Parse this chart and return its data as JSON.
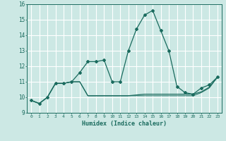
{
  "title": "",
  "xlabel": "Humidex (Indice chaleur)",
  "bg_color": "#cce8e4",
  "grid_color": "#ffffff",
  "line_color": "#1a6b5e",
  "x_values": [
    0,
    1,
    2,
    3,
    4,
    5,
    6,
    7,
    8,
    9,
    10,
    11,
    12,
    13,
    14,
    15,
    16,
    17,
    18,
    19,
    20,
    21,
    22,
    23
  ],
  "line1": [
    9.8,
    9.6,
    10.0,
    10.9,
    10.9,
    11.0,
    11.6,
    12.3,
    12.3,
    12.4,
    11.0,
    11.0,
    13.0,
    14.4,
    15.3,
    15.6,
    14.3,
    13.0,
    10.7,
    10.3,
    10.2,
    10.6,
    10.8,
    11.3
  ],
  "line2": [
    9.8,
    9.6,
    10.0,
    10.9,
    10.9,
    11.0,
    11.0,
    10.1,
    10.1,
    10.1,
    10.1,
    10.1,
    10.1,
    10.15,
    10.2,
    10.2,
    10.2,
    10.2,
    10.2,
    10.2,
    10.2,
    10.35,
    10.65,
    11.3
  ],
  "line3": [
    9.8,
    9.6,
    10.0,
    10.9,
    10.9,
    11.0,
    11.0,
    10.1,
    10.1,
    10.1,
    10.1,
    10.1,
    10.1,
    10.1,
    10.1,
    10.1,
    10.1,
    10.1,
    10.1,
    10.1,
    10.1,
    10.3,
    10.6,
    11.3
  ],
  "ylim": [
    9.0,
    16.0
  ],
  "xlim": [
    -0.5,
    23.5
  ],
  "yticks": [
    9,
    10,
    11,
    12,
    13,
    14,
    15,
    16
  ]
}
